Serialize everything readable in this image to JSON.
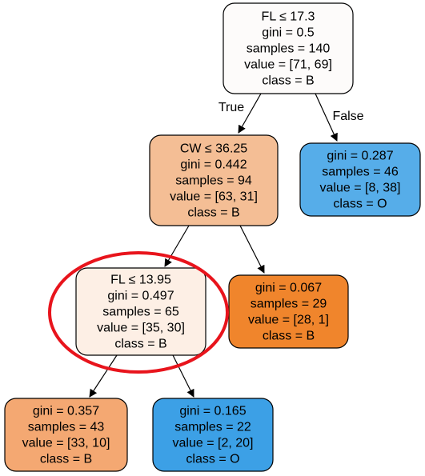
{
  "tree": {
    "nodes": [
      {
        "id": "root",
        "lines": [
          "FL ≤ 17.3",
          "gini = 0.5",
          "samples = 140",
          "value = [71, 69]",
          "class = B"
        ],
        "fill": "#fdfbfa"
      },
      {
        "id": "cw",
        "lines": [
          "CW ≤ 36.25",
          "gini = 0.442",
          "samples = 94",
          "value = [63, 31]",
          "class = B"
        ],
        "fill": "#f4be95"
      },
      {
        "id": "leaf-o-46",
        "lines": [
          "gini = 0.287",
          "samples = 46",
          "value = [8, 38]",
          "class = O"
        ],
        "fill": "#56ade9"
      },
      {
        "id": "fl2",
        "lines": [
          "FL ≤ 13.95",
          "gini = 0.497",
          "samples = 65",
          "value = [35, 30]",
          "class = B"
        ],
        "fill": "#fdefe5"
      },
      {
        "id": "leaf-b-29",
        "lines": [
          "gini = 0.067",
          "samples = 29",
          "value = [28, 1]",
          "class = B"
        ],
        "fill": "#f0852c"
      },
      {
        "id": "leaf-b-43",
        "lines": [
          "gini = 0.357",
          "samples = 43",
          "value = [33, 10]",
          "class = B"
        ],
        "fill": "#f4a872"
      },
      {
        "id": "leaf-o-22",
        "lines": [
          "gini = 0.165",
          "samples = 22",
          "value = [2, 20]",
          "class = O"
        ],
        "fill": "#3ca0e6"
      }
    ],
    "edges": [
      {
        "from": "root",
        "to": "cw",
        "label": "True"
      },
      {
        "from": "root",
        "to": "leaf-o-46",
        "label": "False"
      },
      {
        "from": "cw",
        "to": "fl2",
        "label": ""
      },
      {
        "from": "cw",
        "to": "leaf-b-29",
        "label": ""
      },
      {
        "from": "fl2",
        "to": "leaf-b-43",
        "label": ""
      },
      {
        "from": "fl2",
        "to": "leaf-o-22",
        "label": ""
      }
    ],
    "highlight": {
      "node": "fl2",
      "color": "#e8141c"
    }
  }
}
